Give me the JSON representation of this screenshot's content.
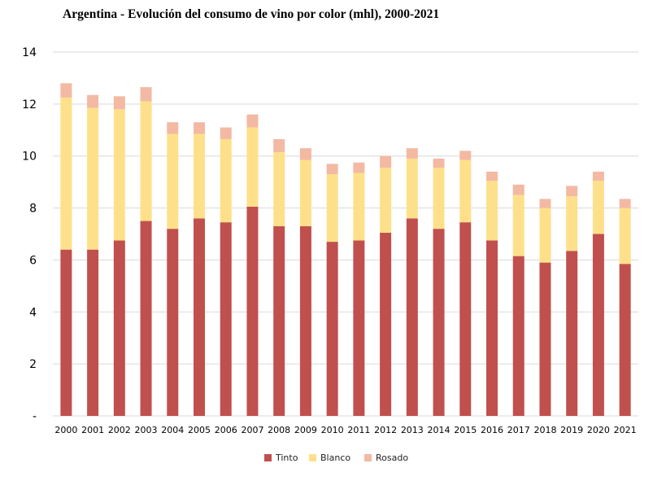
{
  "chart_data": {
    "type": "bar",
    "stacked": true,
    "title": "Argentina - Evolución del consumo de vino por color (mhl), 2000-2021",
    "xlabel": "",
    "ylabel": "",
    "ylim": [
      0,
      14
    ],
    "yticks": [
      {
        "value": 0,
        "label": "-"
      },
      {
        "value": 2,
        "label": "2"
      },
      {
        "value": 4,
        "label": "4"
      },
      {
        "value": 6,
        "label": "6"
      },
      {
        "value": 8,
        "label": "8"
      },
      {
        "value": 10,
        "label": "10"
      },
      {
        "value": 12,
        "label": "12"
      },
      {
        "value": 14,
        "label": "14"
      }
    ],
    "grid": true,
    "legend_position": "bottom",
    "categories": [
      "2000",
      "2001",
      "2002",
      "2003",
      "2004",
      "2005",
      "2006",
      "2007",
      "2008",
      "2009",
      "2010",
      "2011",
      "2012",
      "2013",
      "2014",
      "2015",
      "2016",
      "2017",
      "2018",
      "2019",
      "2020",
      "2021"
    ],
    "series": [
      {
        "name": "Tinto",
        "color": "#c0504d",
        "values": [
          6.4,
          6.4,
          6.75,
          7.5,
          7.2,
          7.6,
          7.45,
          8.05,
          7.3,
          7.3,
          6.7,
          6.75,
          7.05,
          7.6,
          7.2,
          7.45,
          6.75,
          6.15,
          5.9,
          6.35,
          7.0,
          5.85
        ]
      },
      {
        "name": "Blanco",
        "color": "#ffe08a",
        "values": [
          5.85,
          5.45,
          5.05,
          4.6,
          3.65,
          3.25,
          3.2,
          3.05,
          2.85,
          2.55,
          2.6,
          2.6,
          2.5,
          2.3,
          2.35,
          2.4,
          2.3,
          2.35,
          2.1,
          2.1,
          2.05,
          2.15
        ]
      },
      {
        "name": "Rosado",
        "color": "#f3b9a3",
        "values": [
          0.55,
          0.5,
          0.5,
          0.55,
          0.45,
          0.45,
          0.45,
          0.5,
          0.5,
          0.45,
          0.4,
          0.4,
          0.45,
          0.4,
          0.35,
          0.35,
          0.35,
          0.4,
          0.35,
          0.4,
          0.35,
          0.35
        ]
      }
    ]
  }
}
